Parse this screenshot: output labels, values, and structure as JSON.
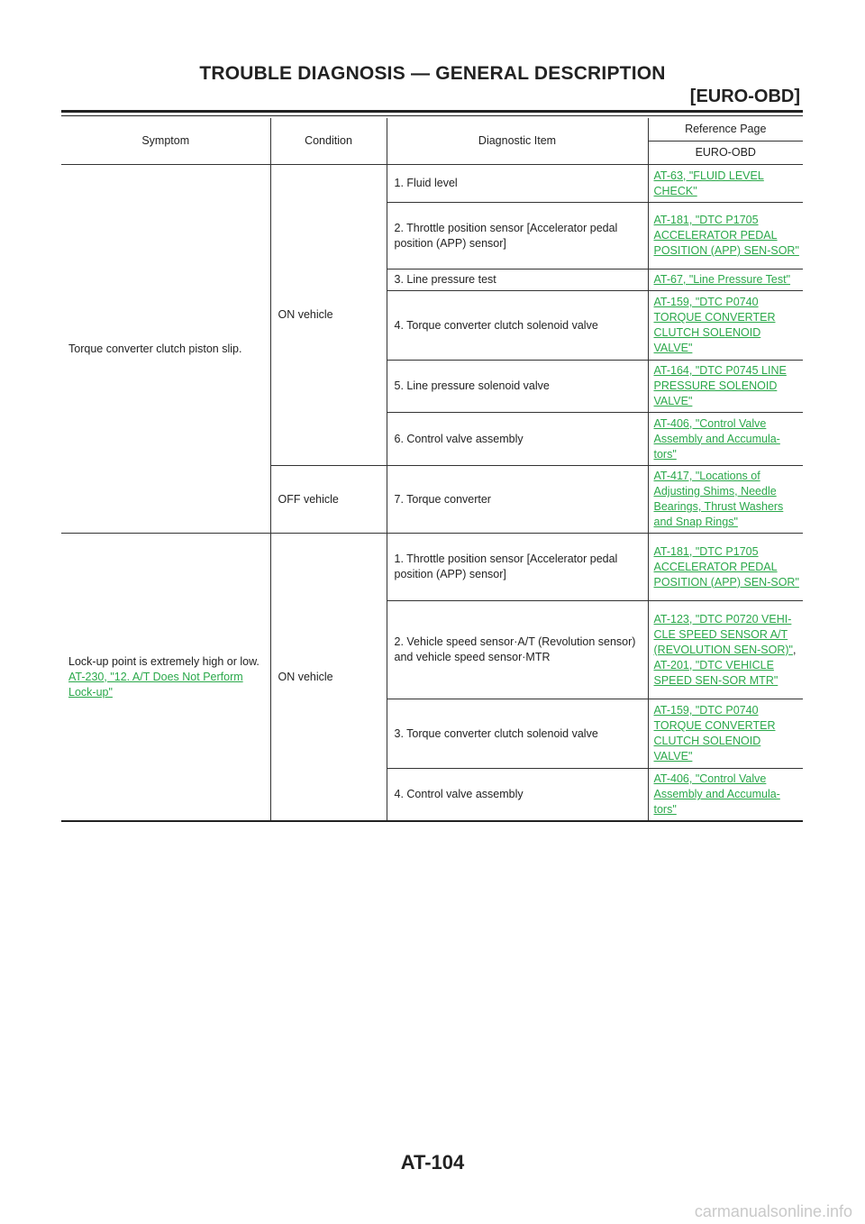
{
  "header": {
    "title": "TROUBLE DIAGNOSIS — GENERAL DESCRIPTION",
    "section": "[EURO-OBD]"
  },
  "table": {
    "headers": {
      "symptom": "Symptom",
      "condition": "Condition",
      "diagnostic_item": "Diagnostic Item",
      "reference_page": "Reference Page",
      "euro_obd": "EURO-OBD"
    },
    "group1": {
      "symptom": "Torque converter clutch piston slip.",
      "condition_on": "ON vehicle",
      "condition_off": "OFF vehicle",
      "rows": [
        {
          "item": "1. Fluid level",
          "ref": "AT-63, \"FLUID LEVEL CHECK\""
        },
        {
          "item": "2. Throttle position sensor [Accelerator pedal position (APP) sensor]",
          "ref": "AT-181, \"DTC P1705 ACCELERATOR PEDAL POSITION (APP) SEN-SOR\""
        },
        {
          "item": "3. Line pressure test",
          "ref": "AT-67, \"Line Pressure Test\""
        },
        {
          "item": "4. Torque converter clutch solenoid valve",
          "ref": "AT-159, \"DTC P0740 TORQUE CONVERTER CLUTCH SOLENOID VALVE\""
        },
        {
          "item": "5. Line pressure solenoid valve",
          "ref": "AT-164, \"DTC P0745 LINE PRESSURE SOLENOID VALVE\""
        },
        {
          "item": "6. Control valve assembly",
          "ref": "AT-406, \"Control Valve Assembly and Accumula-tors\""
        },
        {
          "item": "7. Torque converter",
          "ref": "AT-417, \"Locations of Adjusting Shims, Needle Bearings, Thrust Washers and Snap Rings\""
        }
      ]
    },
    "group2": {
      "symptom": "Lock-up point is extremely high or low.",
      "symptom_link": "AT-230, \"12. A/T Does Not Perform Lock-up\"",
      "condition": "ON vehicle",
      "rows": [
        {
          "item": "1. Throttle position sensor [Accelerator pedal position (APP) sensor]",
          "ref": "AT-181, \"DTC P1705 ACCELERATOR PEDAL POSITION (APP) SEN-SOR\""
        },
        {
          "item": "2. Vehicle speed sensor·A/T (Revolution sensor) and vehicle speed sensor·MTR",
          "ref": "AT-123, \"DTC P0720 VEHI-CLE SPEED SENSOR A/T (REVOLUTION SEN-SOR)\"",
          "ref_sep": ", ",
          "ref2": "AT-201, \"DTC VEHICLE SPEED SEN-SOR MTR\""
        },
        {
          "item": "3. Torque converter clutch solenoid valve",
          "ref": "AT-159, \"DTC P0740 TORQUE CONVERTER CLUTCH SOLENOID VALVE\""
        },
        {
          "item": "4. Control valve assembly",
          "ref": "AT-406, \"Control Valve Assembly and Accumula-tors\""
        }
      ]
    }
  },
  "footer": {
    "page_number": "AT-104",
    "watermark": "carmanualsonline.info"
  },
  "colors": {
    "link": "#2aa84a",
    "text": "#222222",
    "watermark": "#c9c9c9"
  }
}
